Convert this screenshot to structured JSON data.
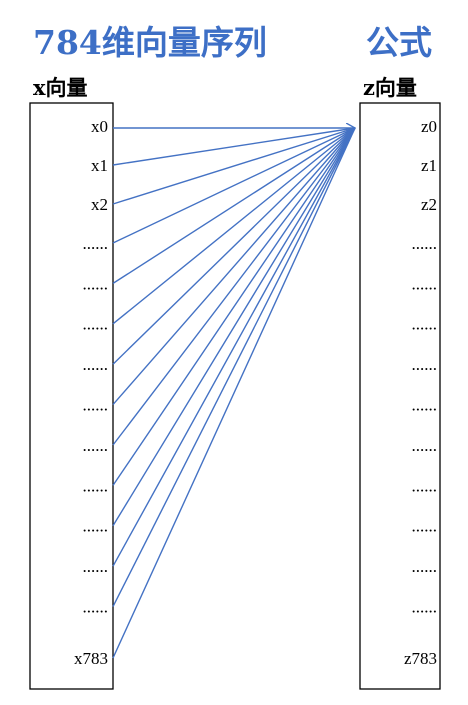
{
  "left": {
    "title": "784维向量序列",
    "label": "x向量",
    "items": [
      "x0",
      "x1",
      "x2",
      "......",
      "......",
      "......",
      "......",
      "......",
      "......",
      "......",
      "......",
      "......",
      "......",
      "x783"
    ]
  },
  "right": {
    "title": "公式",
    "label": "z向量",
    "items": [
      "z0",
      "z1",
      "z2",
      "......",
      "......",
      "......",
      "......",
      "......",
      "......",
      "......",
      "......",
      "......",
      "......",
      "z783"
    ]
  }
}
